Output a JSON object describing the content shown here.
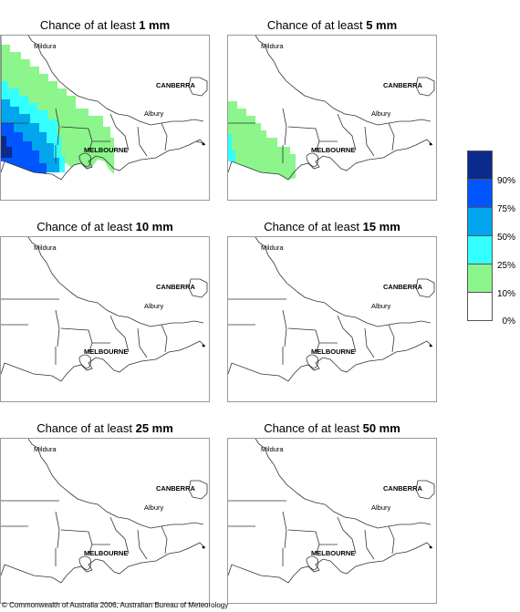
{
  "panels": [
    {
      "title_prefix": "Chance of at least ",
      "threshold": "1 mm"
    },
    {
      "title_prefix": "Chance of at least ",
      "threshold": "5 mm"
    },
    {
      "title_prefix": "Chance of at least ",
      "threshold": "10 mm"
    },
    {
      "title_prefix": "Chance of at least ",
      "threshold": "15 mm"
    },
    {
      "title_prefix": "Chance of at least ",
      "threshold": "25 mm"
    },
    {
      "title_prefix": "Chance of at least ",
      "threshold": "50 mm"
    }
  ],
  "places": [
    "Mildura",
    "CANBERRA",
    "Albury",
    "MELBOURNE"
  ],
  "legend": {
    "labels": [
      "90%",
      "75%",
      "50%",
      "25%",
      "10%",
      "0%"
    ],
    "colors": [
      "#0a2a8c",
      "#0055ff",
      "#00a5ee",
      "#33ffff",
      "#8cf58c",
      "#ffffff"
    ]
  },
  "copyright": "© Commonwealth of Australia 2006, Australian Bureau of Meteorology"
}
